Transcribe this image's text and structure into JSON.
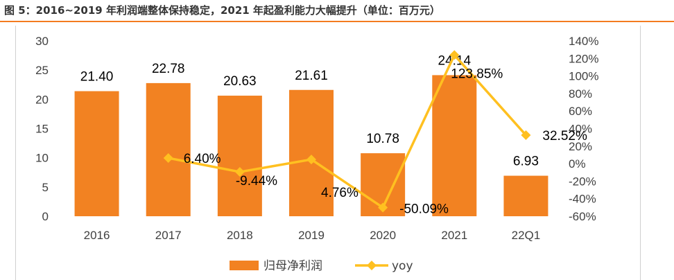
{
  "page": {
    "title": "图 5：2016~2019 年利润端整体保持稳定，2021 年起盈利能力大幅提升（单位：百万元）"
  },
  "colors": {
    "bar": "#f28222",
    "line": "#ffc020",
    "accent_rule": "#f47b20"
  },
  "chart_data": {
    "type": "bar",
    "categories": [
      "2016",
      "2017",
      "2018",
      "2019",
      "2020",
      "2021",
      "22Q1"
    ],
    "series": [
      {
        "name": "归母净利润",
        "type": "bar",
        "axis": "left",
        "values": [
          21.4,
          22.78,
          20.63,
          21.61,
          10.78,
          24.14,
          6.93
        ],
        "labels": [
          "21.40",
          "22.78",
          "20.63",
          "21.61",
          "10.78",
          "24.14",
          "6.93"
        ]
      },
      {
        "name": "yoy",
        "type": "line",
        "axis": "right",
        "values": [
          null,
          6.4,
          -9.44,
          4.76,
          -50.09,
          123.85,
          32.52
        ],
        "labels": [
          "",
          "6.40%",
          "-9.44%",
          "4.76%",
          "-50.09%",
          "123.85%",
          "32.52%"
        ]
      }
    ],
    "y_left": {
      "min": 0,
      "max": 30,
      "ticks": [
        "0",
        "5",
        "10",
        "15",
        "20",
        "25",
        "30"
      ]
    },
    "y_right": {
      "min": -60,
      "max": 140,
      "ticks": [
        "-60%",
        "-40%",
        "-20%",
        "0%",
        "20%",
        "40%",
        "60%",
        "80%",
        "100%",
        "120%",
        "140%"
      ]
    },
    "grid": false,
    "legend": "bottom"
  }
}
